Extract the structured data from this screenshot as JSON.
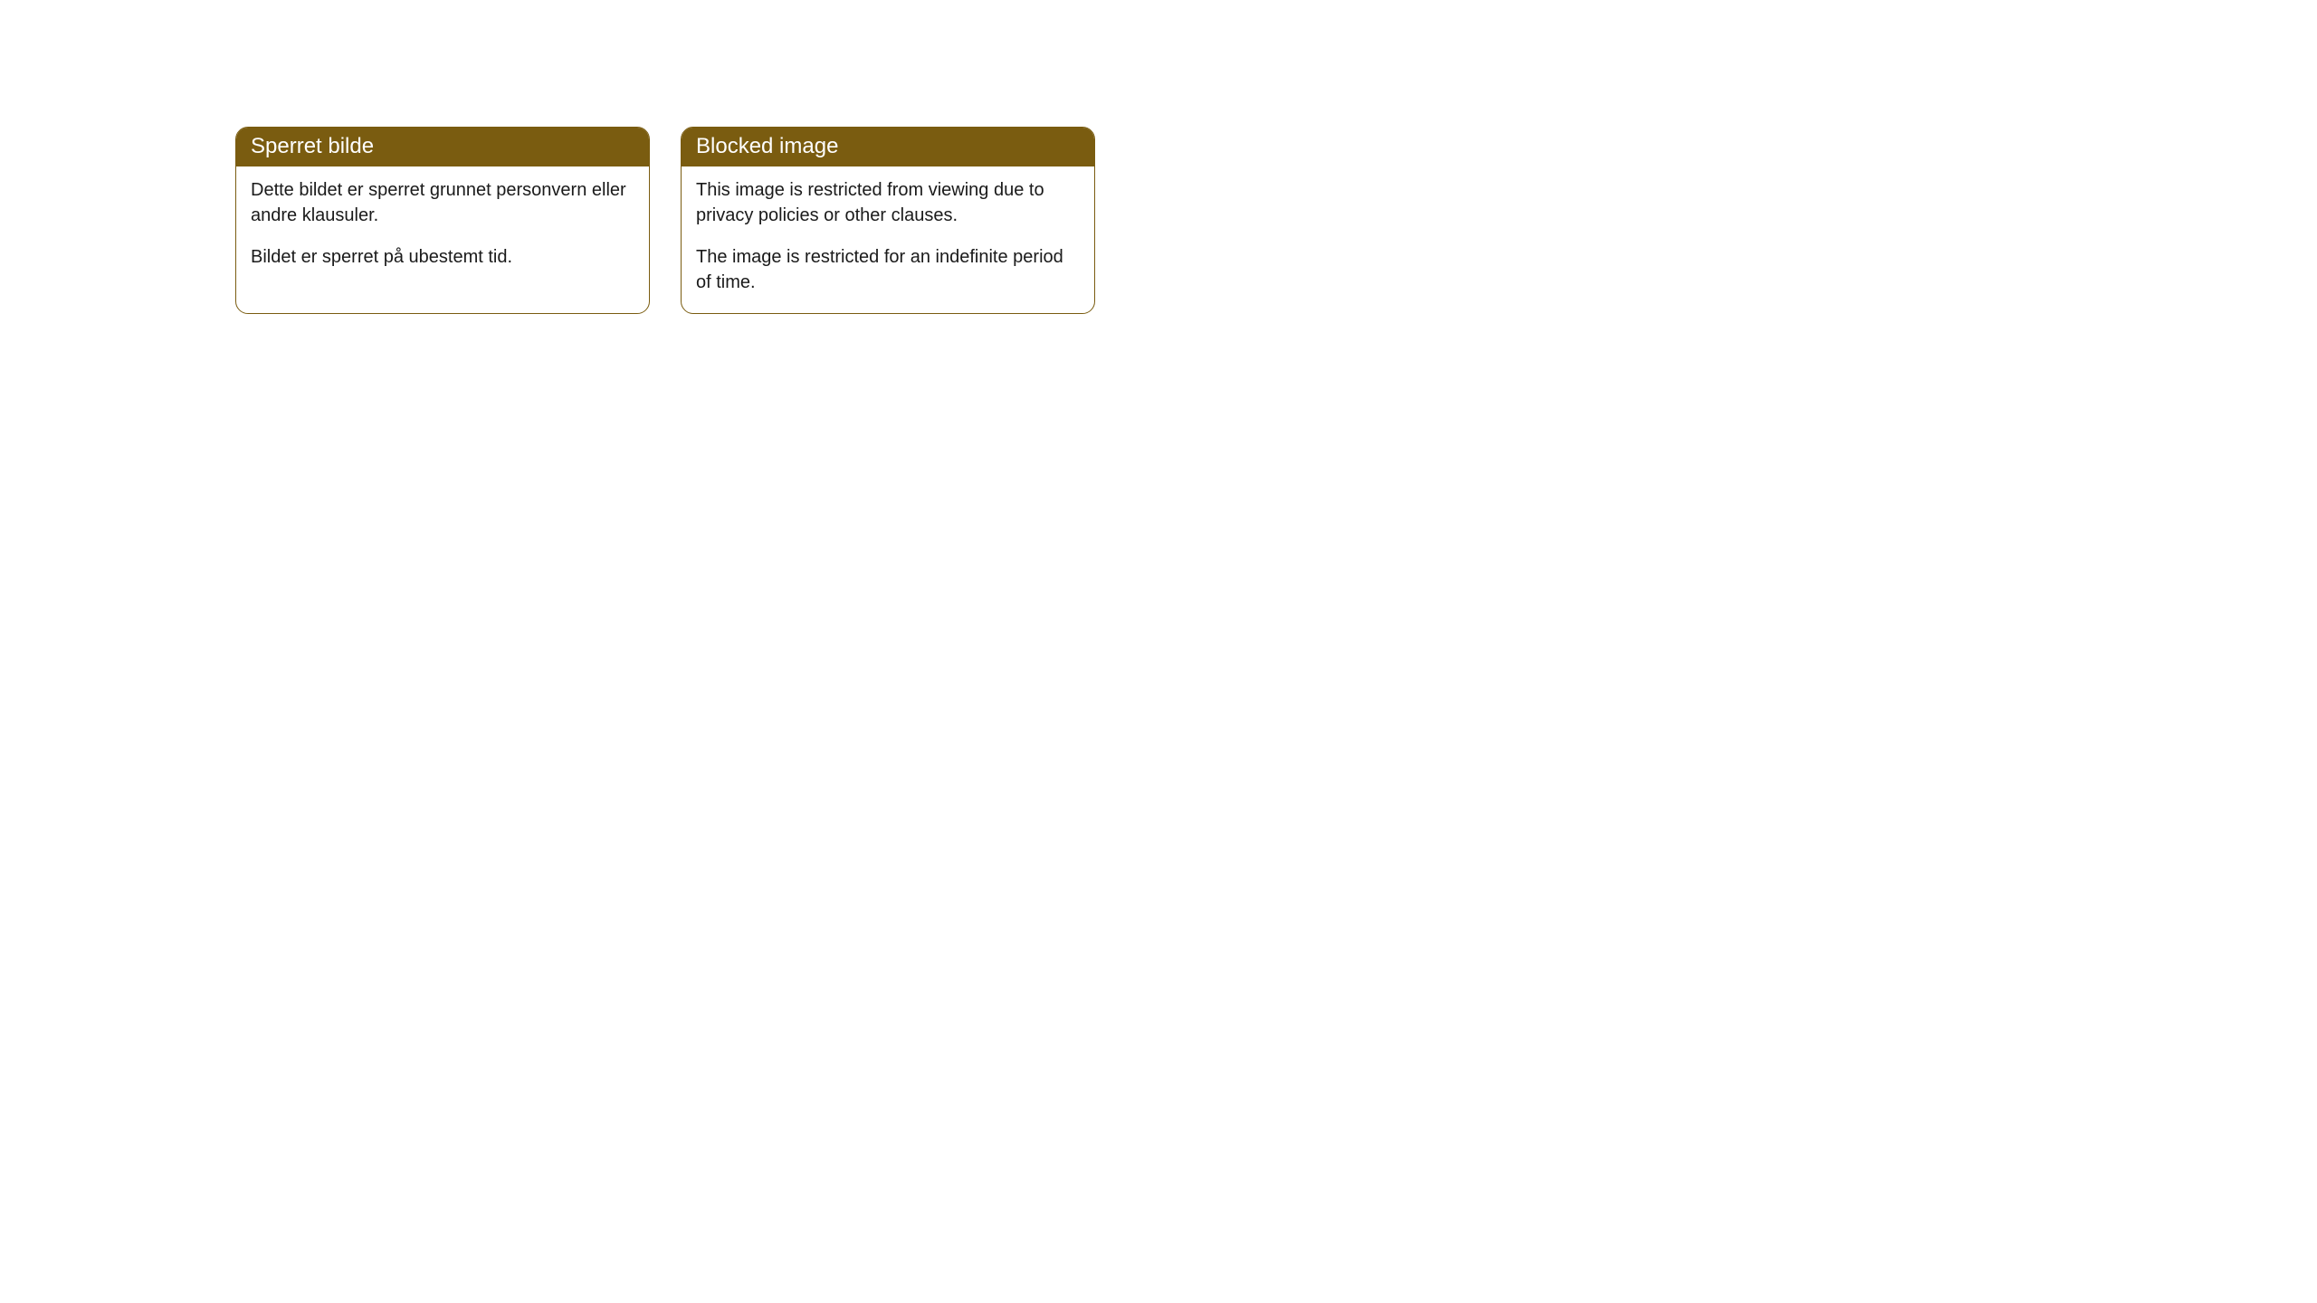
{
  "cards": [
    {
      "title": "Sperret bilde",
      "paragraph1": "Dette bildet er sperret grunnet personvern eller andre klausuler.",
      "paragraph2": "Bildet er sperret på ubestemt tid."
    },
    {
      "title": "Blocked image",
      "paragraph1": "This image is restricted from viewing due to privacy policies or other clauses.",
      "paragraph2": "The image is restricted for an indefinite period of time."
    }
  ],
  "colors": {
    "header_bg": "#7a5c10",
    "header_text": "#ffffff",
    "body_text": "#1a1a1a",
    "border": "#7a5c10",
    "page_bg": "#ffffff"
  }
}
